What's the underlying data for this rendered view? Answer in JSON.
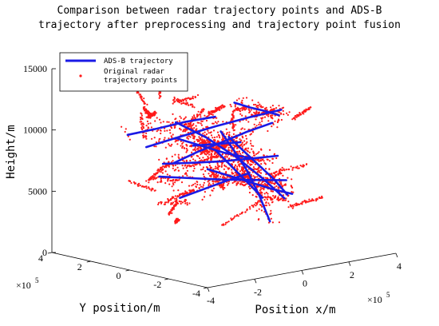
{
  "title_lines": [
    "Comparison between radar trajectory points and ADS-B",
    "trajectory after preprocessing and trajectory point fusion"
  ],
  "colors": {
    "adsb": "#1a1ae6",
    "radar": "#ff1a1a",
    "axes": "#000000"
  },
  "chart_data": {
    "type": "scatter",
    "projection": "3d",
    "title": "Comparison between radar trajectory points and ADS-B trajectory after preprocessing and trajectory point fusion",
    "xlabel": "Position x/m",
    "ylabel": "Y position/m",
    "zlabel": "Height/m",
    "x_multiplier": "×10^5",
    "y_multiplier": "×10^5",
    "xlim": [
      -4,
      4
    ],
    "ylim": [
      -4,
      4
    ],
    "zlim": [
      0,
      15000
    ],
    "x_ticks": [
      -4,
      -2,
      0,
      2,
      4
    ],
    "y_ticks": [
      -4,
      -2,
      0,
      2,
      4
    ],
    "z_ticks": [
      0,
      5000,
      10000,
      15000
    ],
    "x_tick_labels": [
      "-4",
      "-2",
      "0",
      "2",
      "4"
    ],
    "y_tick_labels": [
      "-4",
      "-2",
      "0",
      "2",
      "4"
    ],
    "z_tick_labels": [
      "0",
      "5000",
      "10000",
      "15000"
    ],
    "legend_position": "top-left",
    "legend": [
      {
        "name": "ADS-B trajectory",
        "style": "line"
      },
      {
        "name": "Original radar trajectory points",
        "style": "dots"
      }
    ],
    "series": [
      {
        "name": "ADS-B trajectory",
        "type": "line",
        "tracks": [
          [
            [
              -2.8,
              0.6,
              9400
            ],
            [
              -1.5,
              0.5,
              9800
            ],
            [
              0.0,
              0.4,
              10200
            ],
            [
              1.4,
              0.3,
              10500
            ],
            [
              2.6,
              0.2,
              10700
            ]
          ],
          [
            [
              -2.3,
              -0.2,
              8200
            ],
            [
              -1.2,
              -0.1,
              8700
            ],
            [
              0.0,
              0.0,
              9100
            ],
            [
              1.1,
              0.2,
              9400
            ],
            [
              2.3,
              0.3,
              9700
            ]
          ],
          [
            [
              -1.6,
              1.2,
              7400
            ],
            [
              -0.6,
              1.0,
              7200
            ],
            [
              0.5,
              0.8,
              7000
            ],
            [
              1.7,
              0.6,
              6900
            ],
            [
              2.7,
              0.5,
              6800
            ]
          ],
          [
            [
              0.2,
              0.4,
              9700
            ],
            [
              0.4,
              0.0,
              8300
            ],
            [
              0.6,
              -0.5,
              6600
            ],
            [
              0.7,
              -1.0,
              4700
            ],
            [
              0.8,
              -1.4,
              2800
            ]
          ],
          [
            [
              0.7,
              0.6,
              9000
            ],
            [
              1.1,
              0.3,
              7800
            ],
            [
              1.5,
              0.0,
              6600
            ],
            [
              1.9,
              -0.3,
              5400
            ],
            [
              2.2,
              -0.6,
              4200
            ]
          ],
          [
            [
              -0.8,
              1.5,
              10400
            ],
            [
              0.1,
              1.0,
              9000
            ],
            [
              0.9,
              0.4,
              7300
            ],
            [
              1.5,
              -0.2,
              5600
            ],
            [
              2.0,
              -0.7,
              4000
            ]
          ],
          [
            [
              -2.0,
              0.9,
              6600
            ],
            [
              -0.9,
              0.6,
              6200
            ],
            [
              0.2,
              0.3,
              5800
            ],
            [
              1.3,
              0.0,
              5500
            ],
            [
              2.4,
              -0.3,
              5200
            ]
          ],
          [
            [
              1.6,
              1.4,
              11200
            ],
            [
              2.1,
              1.2,
              10700
            ],
            [
              2.6,
              1.0,
              10300
            ],
            [
              3.0,
              0.8,
              9900
            ]
          ],
          [
            [
              -2.6,
              1.8,
              9900
            ],
            [
              -1.5,
              1.6,
              10100
            ],
            [
              -0.4,
              1.5,
              10300
            ],
            [
              0.7,
              1.3,
              10400
            ]
          ],
          [
            [
              -1.0,
              -0.8,
              9000
            ],
            [
              -0.5,
              -1.0,
              7600
            ],
            [
              0.0,
              -1.2,
              6200
            ],
            [
              0.4,
              -1.5,
              4900
            ]
          ],
          [
            [
              0.3,
              1.2,
              6300
            ],
            [
              1.0,
              0.9,
              5600
            ],
            [
              1.7,
              0.6,
              4900
            ],
            [
              2.3,
              0.3,
              4300
            ],
            [
              2.9,
              0.0,
              3800
            ]
          ],
          [
            [
              -1.8,
              -0.6,
              9600
            ],
            [
              -0.8,
              -0.2,
              9200
            ],
            [
              0.2,
              0.2,
              8800
            ],
            [
              1.2,
              0.6,
              8400
            ]
          ],
          [
            [
              -0.4,
              2.0,
              8800
            ],
            [
              0.3,
              1.6,
              8100
            ],
            [
              1.0,
              1.2,
              7400
            ],
            [
              1.8,
              0.8,
              6800
            ]
          ],
          [
            [
              -2.2,
              -0.4,
              5400
            ],
            [
              -1.1,
              -0.3,
              5700
            ],
            [
              0.0,
              -0.2,
              6000
            ],
            [
              1.0,
              -0.1,
              6200
            ]
          ]
        ]
      },
      {
        "name": "Original radar trajectory points",
        "type": "scatter",
        "tracks_note": "",
        "point_count": 2800
      }
    ]
  }
}
